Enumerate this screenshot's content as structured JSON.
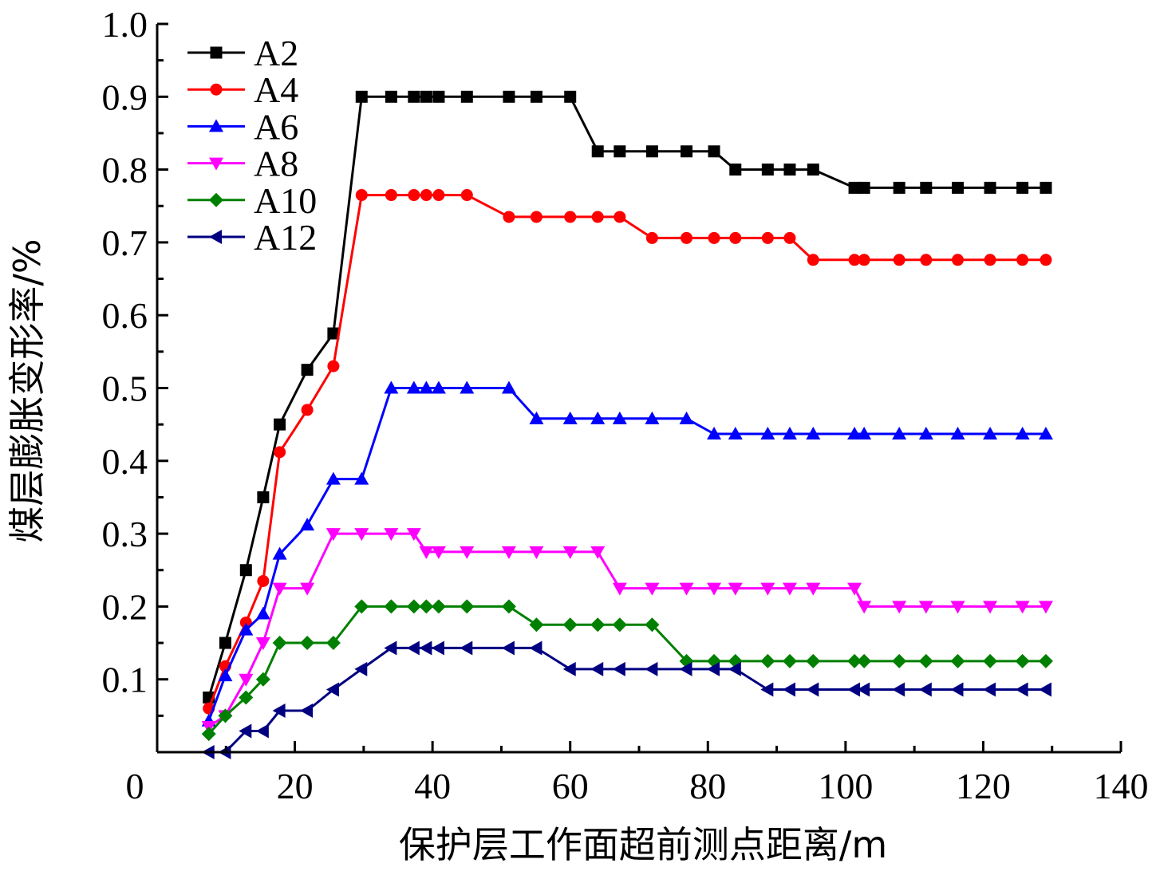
{
  "chart_data": {
    "type": "line",
    "title": "",
    "xlabel": "保护层工作面超前测点距离/m",
    "ylabel": "煤层膨胀变形率/%",
    "xlim": [
      0,
      140
    ],
    "ylim": [
      0,
      1.0
    ],
    "x_ticks": [
      "0",
      "20",
      "40",
      "60",
      "80",
      "100",
      "120",
      "140"
    ],
    "y_ticks": [
      "0.1",
      "0.2",
      "0.3",
      "0.4",
      "0.5",
      "0.6",
      "0.7",
      "0.8",
      "0.9",
      "1.0"
    ],
    "legend_position": "top-left",
    "series": [
      {
        "name": "A2",
        "color": "#000000",
        "marker": "square",
        "x": [
          7.5,
          9.9,
          12.9,
          15.4,
          17.8,
          21.8,
          25.6,
          29.7,
          34,
          37.3,
          39.1,
          40.9,
          45,
          51.1,
          55.1,
          60,
          64,
          67.2,
          71.9,
          76.9,
          80.9,
          84,
          88.7,
          91.9,
          95.3,
          101.3,
          102.7,
          107.8,
          111.7,
          116.3,
          121,
          125.7,
          129.1
        ],
        "y": [
          0.075,
          0.15,
          0.25,
          0.35,
          0.45,
          0.525,
          0.575,
          0.9,
          0.9,
          0.9,
          0.9,
          0.9,
          0.9,
          0.9,
          0.9,
          0.9,
          0.825,
          0.825,
          0.825,
          0.825,
          0.825,
          0.8,
          0.8,
          0.8,
          0.8,
          0.775,
          0.775,
          0.775,
          0.775,
          0.775,
          0.775,
          0.775,
          0.775
        ]
      },
      {
        "name": "A4",
        "color": "#ff0000",
        "marker": "circle",
        "x": [
          7.5,
          9.9,
          12.9,
          15.4,
          17.8,
          21.8,
          25.6,
          29.7,
          34,
          37.3,
          39.1,
          40.9,
          45,
          51.1,
          55.1,
          60,
          64,
          67.2,
          71.9,
          76.9,
          80.9,
          84,
          88.7,
          91.9,
          95.3,
          101.3,
          102.7,
          107.8,
          111.7,
          116.3,
          121,
          125.7,
          129.1
        ],
        "y": [
          0.06,
          0.118,
          0.178,
          0.235,
          0.412,
          0.47,
          0.53,
          0.765,
          0.765,
          0.765,
          0.765,
          0.765,
          0.765,
          0.735,
          0.735,
          0.735,
          0.735,
          0.735,
          0.706,
          0.706,
          0.706,
          0.706,
          0.706,
          0.706,
          0.676,
          0.676,
          0.676,
          0.676,
          0.676,
          0.676,
          0.676,
          0.676,
          0.676
        ]
      },
      {
        "name": "A6",
        "color": "#0000ff",
        "marker": "triangle-up",
        "x": [
          7.5,
          9.9,
          12.9,
          15.4,
          17.8,
          21.8,
          25.6,
          29.7,
          34,
          37.3,
          39.1,
          40.9,
          45,
          51.1,
          55.1,
          60,
          64,
          67.2,
          71.9,
          76.9,
          80.9,
          84,
          88.7,
          91.9,
          95.3,
          101.3,
          102.7,
          107.8,
          111.7,
          116.3,
          121,
          125.7,
          129.1
        ],
        "y": [
          0.043,
          0.105,
          0.168,
          0.19,
          0.272,
          0.312,
          0.375,
          0.375,
          0.5,
          0.5,
          0.5,
          0.5,
          0.5,
          0.5,
          0.458,
          0.458,
          0.458,
          0.458,
          0.458,
          0.458,
          0.437,
          0.437,
          0.437,
          0.437,
          0.437,
          0.437,
          0.437,
          0.437,
          0.437,
          0.437,
          0.437,
          0.437,
          0.437
        ]
      },
      {
        "name": "A8",
        "color": "#ff00ff",
        "marker": "triangle-down",
        "x": [
          7.5,
          9.9,
          12.9,
          15.4,
          17.8,
          21.8,
          25.6,
          29.7,
          34,
          37.3,
          39.1,
          40.9,
          45,
          51.1,
          55.1,
          60,
          64,
          67.2,
          71.9,
          76.9,
          80.9,
          84,
          88.7,
          91.9,
          95.3,
          101.3,
          102.7,
          107.8,
          111.7,
          116.3,
          121,
          125.7,
          129.1
        ],
        "y": [
          0.035,
          0.05,
          0.1,
          0.15,
          0.225,
          0.225,
          0.3,
          0.3,
          0.3,
          0.3,
          0.275,
          0.275,
          0.275,
          0.275,
          0.275,
          0.275,
          0.275,
          0.225,
          0.225,
          0.225,
          0.225,
          0.225,
          0.225,
          0.225,
          0.225,
          0.225,
          0.2,
          0.2,
          0.2,
          0.2,
          0.2,
          0.2,
          0.2
        ]
      },
      {
        "name": "A10",
        "color": "#008000",
        "marker": "diamond",
        "x": [
          7.5,
          9.9,
          12.9,
          15.4,
          17.8,
          21.8,
          25.6,
          29.7,
          34,
          37.3,
          39.1,
          40.9,
          45,
          51.1,
          55.1,
          60,
          64,
          67.2,
          71.9,
          76.9,
          80.9,
          84,
          88.7,
          91.9,
          95.3,
          101.3,
          102.7,
          107.8,
          111.7,
          116.3,
          121,
          125.7,
          129.1
        ],
        "y": [
          0.025,
          0.05,
          0.075,
          0.1,
          0.15,
          0.15,
          0.15,
          0.2,
          0.2,
          0.2,
          0.2,
          0.2,
          0.2,
          0.2,
          0.175,
          0.175,
          0.175,
          0.175,
          0.175,
          0.125,
          0.125,
          0.125,
          0.125,
          0.125,
          0.125,
          0.125,
          0.125,
          0.125,
          0.125,
          0.125,
          0.125,
          0.125,
          0.125
        ]
      },
      {
        "name": "A12",
        "color": "#000080",
        "marker": "triangle-left",
        "x": [
          7.5,
          9.9,
          12.9,
          15.4,
          17.8,
          21.8,
          25.6,
          29.7,
          34,
          37.3,
          39.1,
          40.9,
          45,
          51.1,
          55.1,
          60,
          64,
          67.2,
          71.9,
          76.9,
          80.9,
          84,
          88.7,
          91.9,
          95.3,
          101.3,
          102.7,
          107.8,
          111.7,
          116.3,
          121,
          125.7,
          129.1
        ],
        "y": [
          0.0,
          0.0,
          0.029,
          0.029,
          0.057,
          0.057,
          0.086,
          0.114,
          0.143,
          0.143,
          0.143,
          0.143,
          0.143,
          0.143,
          0.143,
          0.114,
          0.114,
          0.114,
          0.114,
          0.114,
          0.114,
          0.114,
          0.086,
          0.086,
          0.086,
          0.086,
          0.086,
          0.086,
          0.086,
          0.086,
          0.086,
          0.086,
          0.086
        ]
      }
    ]
  }
}
